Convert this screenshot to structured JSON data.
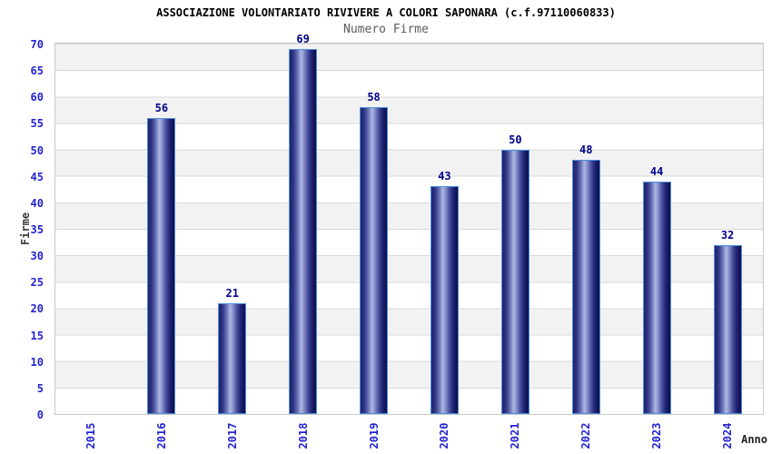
{
  "chart_data": {
    "type": "bar",
    "title": "ASSOCIAZIONE VOLONTARIATO RIVIVERE A COLORI SAPONARA (c.f.97110060833)",
    "subtitle": "Numero Firme",
    "categories": [
      "2015",
      "2016",
      "2017",
      "2018",
      "2019",
      "2020",
      "2021",
      "2022",
      "2023",
      "2024"
    ],
    "values": [
      null,
      56,
      21,
      69,
      58,
      43,
      50,
      48,
      44,
      32
    ],
    "xlabel": "Anno",
    "ylabel": "Firme",
    "ylim": [
      0,
      70
    ],
    "ytick_step": 5,
    "grid": "horizontal-bands-alternating-gray-white",
    "legend": "none",
    "colors": {
      "bar_dark": "#1d2270",
      "bar_highlight": "#aeb7e4",
      "bar_border": "#4e8fd9",
      "value_label": "#00008b",
      "tick_label": "#2323d1",
      "band_gray": "#f2f2f2",
      "band_white": "#ffffff",
      "grid_line": "#d9d9d9",
      "subtitle_text": "#5a5a5a",
      "axis_title_text": "#3a3a3a"
    }
  }
}
